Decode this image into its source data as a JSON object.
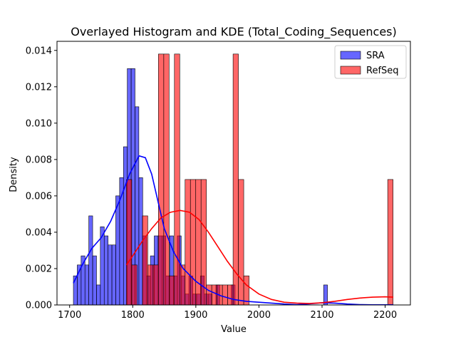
{
  "chart_data": {
    "type": "histogram+kde",
    "title": "Overlayed Histogram and KDE (Total_Coding_Sequences)",
    "xlabel": "Value",
    "ylabel": "Density",
    "xlim": [
      1680,
      2240
    ],
    "ylim": [
      0,
      0.0145
    ],
    "xticks": [
      1700,
      1800,
      1900,
      2000,
      2100,
      2200
    ],
    "yticks": [
      0.0,
      0.002,
      0.004,
      0.006,
      0.008,
      0.01,
      0.012,
      0.014
    ],
    "ytick_labels": [
      "0.000",
      "0.002",
      "0.004",
      "0.006",
      "0.008",
      "0.010",
      "0.012",
      "0.014"
    ],
    "legend_position": "upper right",
    "series": [
      {
        "name": "SRA",
        "color": "#0000ff",
        "bin_start": 1706,
        "bin_width": 6.1,
        "densities": [
          0.0016,
          0.0022,
          0.0027,
          0.0022,
          0.0049,
          0.0027,
          0.0011,
          0.0043,
          0.0038,
          0.0033,
          0.0033,
          0.006,
          0.007,
          0.0087,
          0.013,
          0.013,
          0.0109,
          0.007,
          0.0038,
          0.0016,
          0.0027,
          0.0038,
          0.0038,
          0.0038,
          0.0016,
          0.0038,
          0.0016,
          0.0038,
          0.0016,
          0.0006,
          0.0016,
          0.0006,
          0.0006,
          0.0016,
          0.0006,
          0.0006,
          0,
          0.0011,
          0,
          0,
          0,
          0.0011,
          0,
          0,
          0,
          0,
          0,
          0,
          0,
          0,
          0,
          0,
          0,
          0,
          0,
          0,
          0,
          0,
          0,
          0,
          0,
          0,
          0,
          0,
          0,
          0.0011
        ],
        "kde": [
          [
            1706,
            0.0012
          ],
          [
            1720,
            0.0022
          ],
          [
            1735,
            0.0031
          ],
          [
            1750,
            0.0037
          ],
          [
            1765,
            0.0046
          ],
          [
            1780,
            0.0058
          ],
          [
            1795,
            0.0072
          ],
          [
            1810,
            0.0082
          ],
          [
            1820,
            0.0081
          ],
          [
            1830,
            0.0072
          ],
          [
            1840,
            0.0057
          ],
          [
            1850,
            0.0042
          ],
          [
            1865,
            0.0029
          ],
          [
            1880,
            0.002
          ],
          [
            1900,
            0.0013
          ],
          [
            1920,
            0.0008
          ],
          [
            1940,
            0.0005
          ],
          [
            1960,
            0.0003
          ],
          [
            1980,
            0.0002
          ],
          [
            2000,
            0.00015
          ],
          [
            2020,
            0.0001
          ],
          [
            2040,
            5e-05
          ],
          [
            2060,
            2e-05
          ],
          [
            2080,
            6e-05
          ],
          [
            2100,
            0.00012
          ],
          [
            2120,
            0.0001
          ],
          [
            2140,
            5e-05
          ],
          [
            2160,
            2e-05
          ],
          [
            2180,
            1e-05
          ],
          [
            2213,
            1e-05
          ]
        ]
      },
      {
        "name": "RefSeq",
        "color": "#ff0000",
        "bin_start": 1790,
        "bin_width": 8.45,
        "densities": [
          0.0069,
          0.0022,
          0,
          0.0049,
          0.0022,
          0.0022,
          0.0138,
          0.0138,
          0.0016,
          0.0138,
          0.0022,
          0.0069,
          0.0069,
          0.0069,
          0.0069,
          0.0011,
          0.0011,
          0.0011,
          0.0011,
          0.0011,
          0.0138,
          0.0069,
          0.0016,
          0,
          0,
          0,
          0,
          0,
          0,
          0,
          0,
          0,
          0,
          0,
          0,
          0,
          0,
          0,
          0,
          0,
          0,
          0,
          0,
          0,
          0,
          0,
          0,
          0,
          0,
          0.0069
        ],
        "kde": [
          [
            1790,
            0.0022
          ],
          [
            1800,
            0.0027
          ],
          [
            1815,
            0.0035
          ],
          [
            1830,
            0.0042
          ],
          [
            1845,
            0.0048
          ],
          [
            1860,
            0.0051
          ],
          [
            1875,
            0.0052
          ],
          [
            1890,
            0.0051
          ],
          [
            1905,
            0.0047
          ],
          [
            1920,
            0.004
          ],
          [
            1935,
            0.0032
          ],
          [
            1950,
            0.0024
          ],
          [
            1965,
            0.0017
          ],
          [
            1980,
            0.0011
          ],
          [
            2000,
            0.0006
          ],
          [
            2020,
            0.0003
          ],
          [
            2040,
            0.00015
          ],
          [
            2060,
            0.0001
          ],
          [
            2080,
            8e-05
          ],
          [
            2100,
            0.00012
          ],
          [
            2120,
            0.0002
          ],
          [
            2140,
            0.0003
          ],
          [
            2160,
            0.00038
          ],
          [
            2180,
            0.00043
          ],
          [
            2200,
            0.00045
          ],
          [
            2213,
            0.00043
          ]
        ]
      }
    ]
  }
}
